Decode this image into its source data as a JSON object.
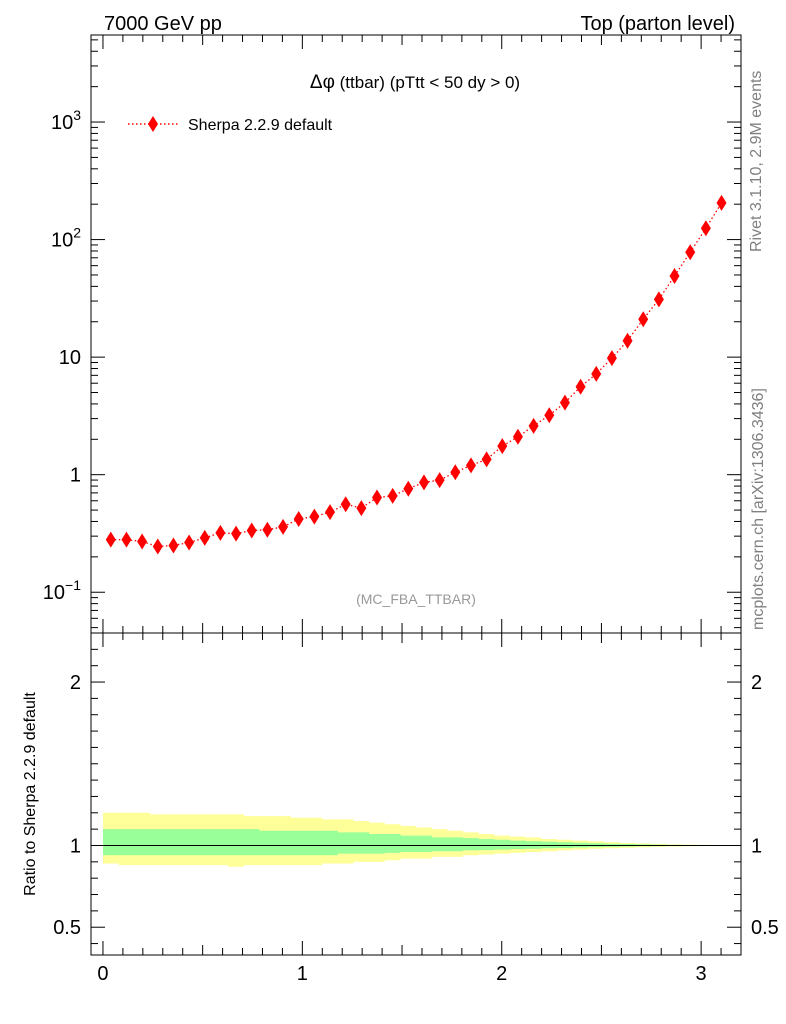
{
  "header": {
    "left_label": "7000 GeV pp",
    "right_label": "Top (parton level)"
  },
  "plot": {
    "title_delta": "Δφ",
    "title_rest": " (ttbar) (pTtt < 50 dy > 0)",
    "watermark": "(MC_FBA_TTBAR)",
    "side_label_top": "Rivet 3.1.10,  2.9M events",
    "side_label_bottom": "mcplots.cern.ch [arXiv:1306.3436]",
    "ratio_ylabel": "Ratio to Sherpa 2.2.9 default"
  },
  "legend": {
    "entries": [
      "Sherpa 2.2.9 default"
    ]
  },
  "colors": {
    "series": "#ff0000",
    "band_inner": "#99ff99",
    "band_outer": "#ffff99",
    "ref_line": "#000000"
  },
  "chart_data": [
    {
      "type": "scatter",
      "xlim": [
        -0.06,
        3.2
      ],
      "ylim": [
        0.045,
        5500
      ],
      "yscale": "log",
      "xticks": [
        0,
        1,
        2,
        3
      ],
      "yticks": [
        {
          "value": 0.1,
          "label": "10⁻¹"
        },
        {
          "value": 1,
          "label": "1"
        },
        {
          "value": 10,
          "label": "10"
        },
        {
          "value": 100,
          "label": "10²"
        },
        {
          "value": 1000,
          "label": "10³"
        }
      ],
      "legend_position": "top-left",
      "series": [
        {
          "name": "Sherpa 2.2.9 default",
          "marker": "diamond",
          "line": "dotted",
          "x": [
            0.0393,
            0.1178,
            0.1963,
            0.2749,
            0.3534,
            0.432,
            0.5105,
            0.589,
            0.6676,
            0.7461,
            0.8247,
            0.9032,
            0.9817,
            1.0603,
            1.1388,
            1.2174,
            1.2959,
            1.3744,
            1.453,
            1.5315,
            1.6101,
            1.6886,
            1.7671,
            1.8457,
            1.9242,
            2.0028,
            2.0813,
            2.1598,
            2.2384,
            2.3169,
            2.3955,
            2.474,
            2.5525,
            2.6311,
            2.7096,
            2.7882,
            2.8667,
            2.9452,
            3.0238,
            3.1023
          ],
          "y": [
            0.28,
            0.28,
            0.27,
            0.245,
            0.25,
            0.265,
            0.29,
            0.32,
            0.315,
            0.335,
            0.34,
            0.36,
            0.42,
            0.44,
            0.48,
            0.56,
            0.52,
            0.64,
            0.66,
            0.76,
            0.86,
            0.9,
            1.05,
            1.2,
            1.35,
            1.75,
            2.1,
            2.6,
            3.2,
            4.1,
            5.6,
            7.2,
            9.8,
            13.8,
            21.0,
            31.0,
            49.0,
            78.0,
            125.0,
            205.0
          ]
        }
      ]
    },
    {
      "type": "area",
      "xlim": [
        -0.06,
        3.2
      ],
      "ylim": [
        0.33,
        2.3
      ],
      "xticks": [
        0,
        1,
        2,
        3
      ],
      "yticks": [
        0.5,
        1,
        2
      ],
      "reference": 1,
      "bands": [
        {
          "name": "outer",
          "upper": [
            1.2,
            1.2,
            1.2,
            1.19,
            1.19,
            1.19,
            1.19,
            1.19,
            1.19,
            1.18,
            1.18,
            1.18,
            1.17,
            1.17,
            1.16,
            1.16,
            1.15,
            1.14,
            1.13,
            1.12,
            1.11,
            1.1,
            1.09,
            1.08,
            1.07,
            1.06,
            1.055,
            1.05,
            1.04,
            1.035,
            1.03,
            1.025,
            1.02,
            1.015,
            1.012,
            1.01,
            1.007,
            1.005,
            1.004,
            1.003
          ],
          "lower": [
            0.89,
            0.88,
            0.88,
            0.88,
            0.88,
            0.88,
            0.88,
            0.88,
            0.87,
            0.88,
            0.88,
            0.88,
            0.88,
            0.88,
            0.89,
            0.89,
            0.9,
            0.9,
            0.91,
            0.92,
            0.92,
            0.93,
            0.93,
            0.94,
            0.945,
            0.95,
            0.955,
            0.96,
            0.965,
            0.97,
            0.975,
            0.98,
            0.983,
            0.986,
            0.989,
            0.992,
            0.994,
            0.996,
            0.997,
            0.998
          ]
        },
        {
          "name": "inner",
          "upper": [
            1.1,
            1.1,
            1.1,
            1.1,
            1.1,
            1.1,
            1.1,
            1.1,
            1.1,
            1.1,
            1.09,
            1.09,
            1.09,
            1.09,
            1.09,
            1.08,
            1.08,
            1.07,
            1.07,
            1.06,
            1.06,
            1.05,
            1.05,
            1.045,
            1.04,
            1.035,
            1.03,
            1.027,
            1.024,
            1.02,
            1.017,
            1.014,
            1.011,
            1.009,
            1.007,
            1.005,
            1.004,
            1.003,
            1.002,
            1.001
          ],
          "lower": [
            0.94,
            0.94,
            0.94,
            0.94,
            0.94,
            0.94,
            0.94,
            0.94,
            0.94,
            0.94,
            0.94,
            0.94,
            0.94,
            0.94,
            0.94,
            0.95,
            0.95,
            0.95,
            0.955,
            0.96,
            0.96,
            0.965,
            0.965,
            0.97,
            0.972,
            0.975,
            0.978,
            0.98,
            0.983,
            0.985,
            0.988,
            0.99,
            0.992,
            0.994,
            0.995,
            0.996,
            0.997,
            0.998,
            0.999,
            0.999
          ]
        }
      ]
    }
  ]
}
